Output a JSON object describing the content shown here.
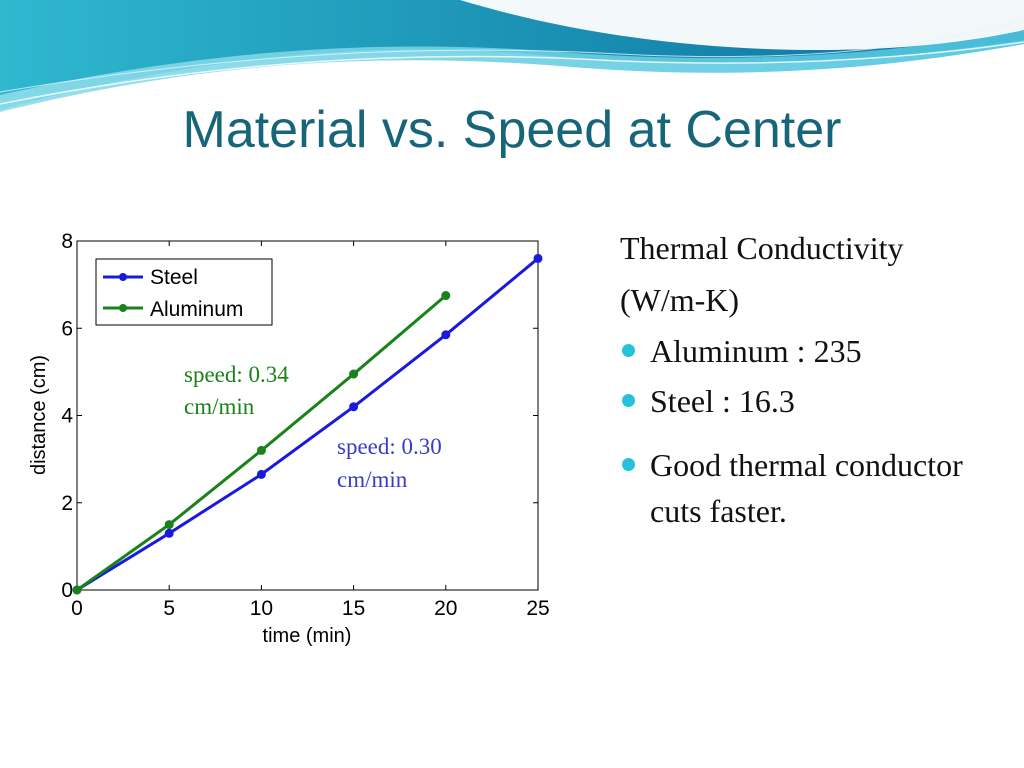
{
  "slide": {
    "title": "Material vs. Speed at Center",
    "accent_color": "#17657a",
    "bullet_color": "#26c2dc"
  },
  "panel": {
    "heading_line1": "Thermal Conductivity",
    "heading_line2": "(W/m-K)",
    "bullets": [
      "Aluminum : 235",
      "Steel : 16.3",
      "Good thermal conductor cuts faster."
    ]
  },
  "chart_data": {
    "type": "line",
    "title": "",
    "xlabel": "time (min)",
    "ylabel": "distance (cm)",
    "xlim": [
      0,
      25
    ],
    "ylim": [
      0,
      8
    ],
    "x_ticks": [
      0,
      5,
      10,
      15,
      20,
      25
    ],
    "y_ticks": [
      0,
      2,
      4,
      6,
      8
    ],
    "grid": false,
    "legend_position": "top-left",
    "series": [
      {
        "name": "Steel",
        "color": "#1a1adc",
        "x": [
          0,
          5,
          10,
          15,
          20,
          25
        ],
        "y": [
          0,
          1.3,
          2.65,
          4.2,
          5.85,
          7.6
        ]
      },
      {
        "name": "Aluminum",
        "color": "#1a821a",
        "x": [
          0,
          5,
          10,
          15,
          20
        ],
        "y": [
          0,
          1.5,
          3.2,
          4.95,
          6.75
        ]
      }
    ],
    "annotations": [
      {
        "line1": "speed: 0.34",
        "line2": "cm/min",
        "color": "#1a821a"
      },
      {
        "line1": "speed: 0.30",
        "line2": "cm/min",
        "color": "#3a3ac8"
      }
    ]
  }
}
